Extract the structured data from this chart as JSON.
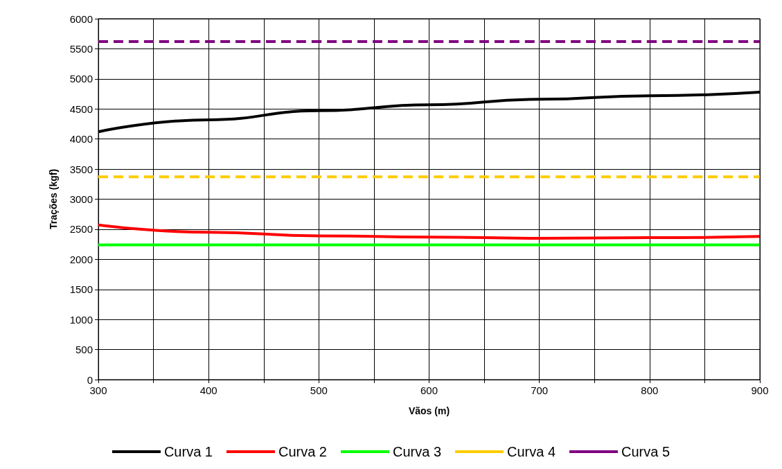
{
  "chart_data": {
    "type": "line",
    "xlabel": "Vãos (m)",
    "ylabel": "Trações (kgf)",
    "xlim": [
      300,
      900
    ],
    "xticks": [
      300,
      {
        "value": 350,
        "label": null
      },
      400,
      {
        "value": 450,
        "label": null
      },
      500,
      {
        "value": 550,
        "label": null
      },
      600,
      {
        "value": 650,
        "label": null
      },
      700,
      {
        "value": 750,
        "label": null
      },
      800,
      {
        "value": 850,
        "label": null
      },
      900
    ],
    "ylim": [
      0,
      6000
    ],
    "yticks": [
      0,
      500,
      1000,
      1500,
      2000,
      2500,
      3000,
      3500,
      4000,
      4500,
      5000,
      5500,
      6000
    ],
    "x": [
      300,
      400,
      500,
      600,
      700,
      800,
      900
    ],
    "series": [
      {
        "name": "Curva 1",
        "color": "#000000",
        "line_style": "solid",
        "values": [
          4120,
          4320,
          4470,
          4570,
          4660,
          4720,
          4780
        ]
      },
      {
        "name": "Curva 2",
        "color": "#ff0000",
        "line_style": "solid",
        "values": [
          2570,
          2450,
          2390,
          2370,
          2350,
          2360,
          2380
        ]
      },
      {
        "name": "Curva 3",
        "color": "#00ff00",
        "line_style": "solid",
        "values": [
          2240,
          2240,
          2240,
          2240,
          2240,
          2240,
          2240
        ]
      },
      {
        "name": "Curva 4",
        "color": "#ffcc00",
        "line_style": "dashed",
        "values": [
          3370,
          3370,
          3370,
          3370,
          3370,
          3370,
          3370
        ]
      },
      {
        "name": "Curva 5",
        "color": "#800080",
        "line_style": "dashed",
        "values": [
          5620,
          5620,
          5620,
          5620,
          5620,
          5620,
          5620
        ]
      }
    ],
    "grid": true,
    "legend": "bottom",
    "marker": "none"
  }
}
